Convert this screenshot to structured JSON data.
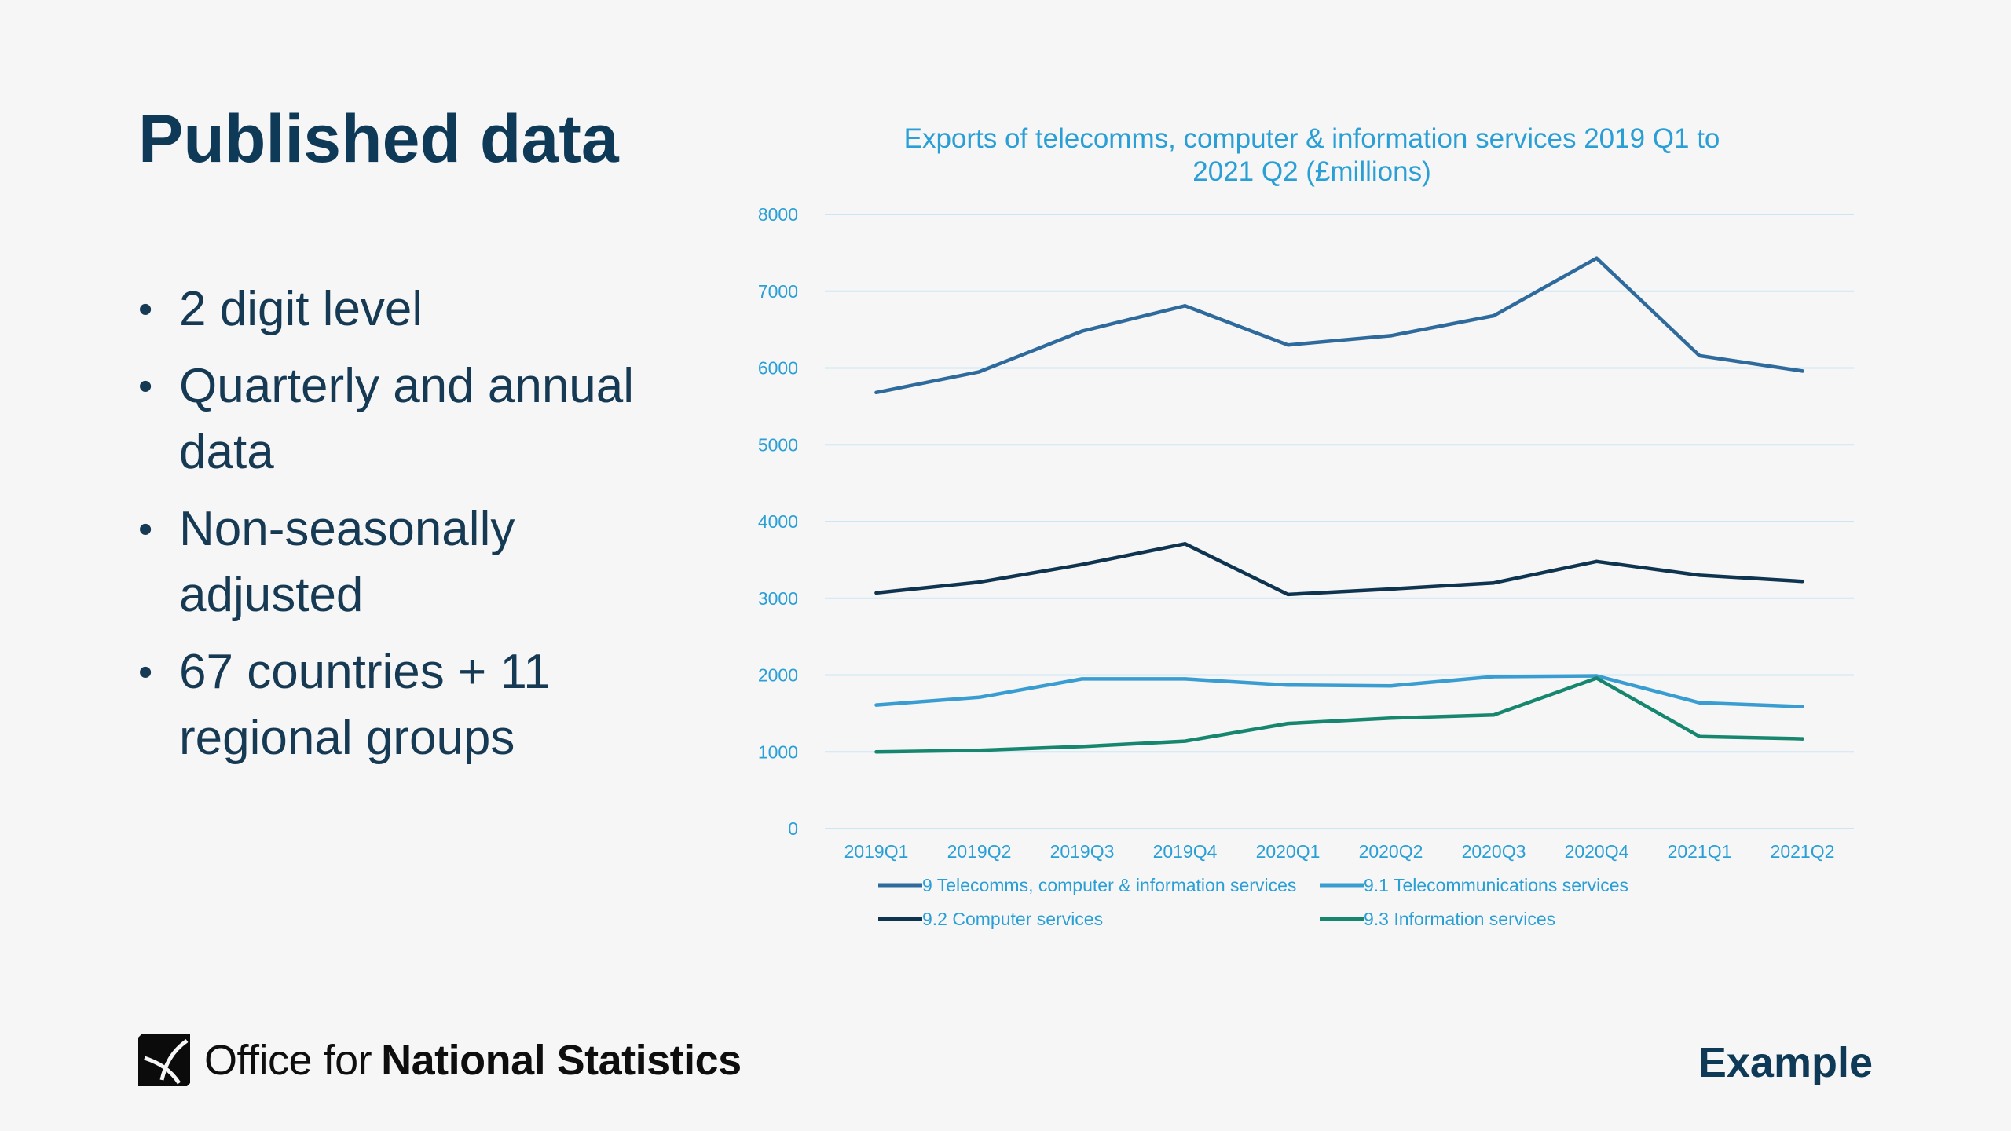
{
  "slide": {
    "title": "Published data",
    "bullets": [
      "2 digit level",
      "Quarterly and annual data",
      "Non-seasonally adjusted",
      "67 countries + 11 regional groups"
    ],
    "logo": {
      "light": "Office for",
      "bold": "National Statistics"
    },
    "tag": "Example"
  },
  "colors": {
    "title": "#0e3a58",
    "chart_text": "#2a9fd6",
    "grid": "#cde6f4"
  },
  "chart_data": {
    "type": "line",
    "title_lines": [
      "Exports of telecomms, computer & information services 2019 Q1 to",
      "2021 Q2 (£millions)"
    ],
    "categories": [
      "2019Q1",
      "2019Q2",
      "2019Q3",
      "2019Q4",
      "2020Q1",
      "2020Q2",
      "2020Q3",
      "2020Q4",
      "2021Q1",
      "2021Q2"
    ],
    "ylim": [
      0,
      8000
    ],
    "yticks": [
      0,
      1000,
      2000,
      3000,
      4000,
      5000,
      6000,
      7000,
      8000
    ],
    "grid": true,
    "legend_position": "bottom",
    "series": [
      {
        "name": "9 Telecomms, computer & information services",
        "color": "#2f6a9c",
        "values": [
          5680,
          5950,
          6480,
          6810,
          6300,
          6420,
          6680,
          7430,
          6160,
          5960
        ]
      },
      {
        "name": "9.1 Telecommunications services",
        "color": "#3a9dd1",
        "values": [
          1610,
          1710,
          1950,
          1950,
          1870,
          1860,
          1980,
          1990,
          1640,
          1590
        ]
      },
      {
        "name": "9.2 Computer services",
        "color": "#0f3450",
        "values": [
          3070,
          3210,
          3440,
          3710,
          3050,
          3120,
          3200,
          3480,
          3300,
          3220
        ]
      },
      {
        "name": "9.3 Information services",
        "color": "#16866e",
        "values": [
          1000,
          1020,
          1070,
          1140,
          1370,
          1440,
          1480,
          1960,
          1200,
          1170
        ]
      }
    ]
  }
}
